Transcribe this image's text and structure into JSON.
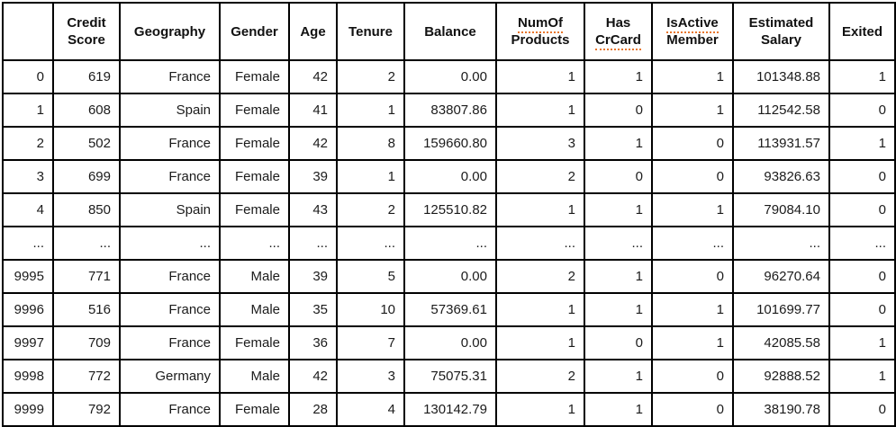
{
  "colors": {
    "border": "#000000",
    "text": "#1b1b1b",
    "spellcheck_underline": "#e8762c",
    "background": "#ffffff"
  },
  "table": {
    "description": "Customer churn dataset preview, rows 0-9999 with ellipsis row",
    "columns": [
      {
        "id": "index",
        "label_lines": [
          ""
        ],
        "squiggle_line": null
      },
      {
        "id": "credit-score",
        "label_lines": [
          "Credit",
          "Score"
        ],
        "squiggle_line": null
      },
      {
        "id": "geography",
        "label_lines": [
          "Geography"
        ],
        "squiggle_line": null
      },
      {
        "id": "gender",
        "label_lines": [
          "Gender"
        ],
        "squiggle_line": null
      },
      {
        "id": "age",
        "label_lines": [
          "Age"
        ],
        "squiggle_line": null
      },
      {
        "id": "tenure",
        "label_lines": [
          "Tenure"
        ],
        "squiggle_line": null
      },
      {
        "id": "balance",
        "label_lines": [
          "Balance"
        ],
        "squiggle_line": null
      },
      {
        "id": "num-of-products",
        "label_lines": [
          "NumOf",
          "Products"
        ],
        "squiggle_line": 0
      },
      {
        "id": "has-crcard",
        "label_lines": [
          "Has",
          "CrCard"
        ],
        "squiggle_line": 1
      },
      {
        "id": "is-active-member",
        "label_lines": [
          "IsActive",
          "Member"
        ],
        "squiggle_line": 0
      },
      {
        "id": "estimated-salary",
        "label_lines": [
          "Estimated",
          "Salary"
        ],
        "squiggle_line": null
      },
      {
        "id": "exited",
        "label_lines": [
          "Exited"
        ],
        "squiggle_line": null
      }
    ],
    "rows": [
      {
        "cells": [
          "0",
          "619",
          "France",
          "Female",
          "42",
          "2",
          "0.00",
          "1",
          "1",
          "1",
          "101348.88",
          "1"
        ]
      },
      {
        "cells": [
          "1",
          "608",
          "Spain",
          "Female",
          "41",
          "1",
          "83807.86",
          "1",
          "0",
          "1",
          "112542.58",
          "0"
        ]
      },
      {
        "cells": [
          "2",
          "502",
          "France",
          "Female",
          "42",
          "8",
          "159660.80",
          "3",
          "1",
          "0",
          "113931.57",
          "1"
        ]
      },
      {
        "cells": [
          "3",
          "699",
          "France",
          "Female",
          "39",
          "1",
          "0.00",
          "2",
          "0",
          "0",
          "93826.63",
          "0"
        ]
      },
      {
        "cells": [
          "4",
          "850",
          "Spain",
          "Female",
          "43",
          "2",
          "125510.82",
          "1",
          "1",
          "1",
          "79084.10",
          "0"
        ]
      },
      {
        "cells": [
          "...",
          "...",
          "...",
          "...",
          "...",
          "...",
          "...",
          "...",
          "...",
          "...",
          "...",
          "..."
        ]
      },
      {
        "cells": [
          "9995",
          "771",
          "France",
          "Male",
          "39",
          "5",
          "0.00",
          "2",
          "1",
          "0",
          "96270.64",
          "0"
        ]
      },
      {
        "cells": [
          "9996",
          "516",
          "France",
          "Male",
          "35",
          "10",
          "57369.61",
          "1",
          "1",
          "1",
          "101699.77",
          "0"
        ]
      },
      {
        "cells": [
          "9997",
          "709",
          "France",
          "Female",
          "36",
          "7",
          "0.00",
          "1",
          "0",
          "1",
          "42085.58",
          "1"
        ]
      },
      {
        "cells": [
          "9998",
          "772",
          "Germany",
          "Male",
          "42",
          "3",
          "75075.31",
          "2",
          "1",
          "0",
          "92888.52",
          "1"
        ]
      },
      {
        "cells": [
          "9999",
          "792",
          "France",
          "Female",
          "28",
          "4",
          "130142.79",
          "1",
          "1",
          "0",
          "38190.78",
          "0"
        ]
      }
    ]
  }
}
